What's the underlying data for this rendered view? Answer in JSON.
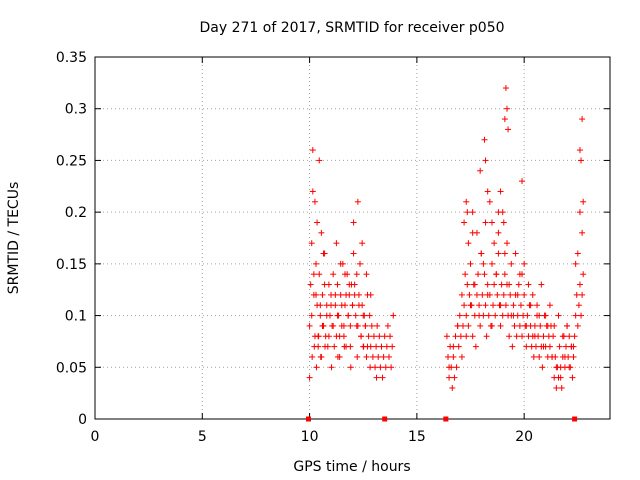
{
  "chart_data": {
    "type": "scatter",
    "title": "Day 271 of 2017, SRMTID for receiver p050",
    "xlabel": "GPS time / hours",
    "ylabel": "SRMTID / TECUs",
    "xlim": [
      0,
      24
    ],
    "ylim": [
      0,
      0.35
    ],
    "xticks": [
      "0",
      "5",
      "10",
      "15",
      "20"
    ],
    "yticks": [
      "0",
      "0.05",
      "0.1",
      "0.15",
      "0.2",
      "0.25",
      "0.3",
      "0.35"
    ],
    "grid": true,
    "marker": "+",
    "color": "#ff0000",
    "series": [
      {
        "name": "SRMTID",
        "x": [
          10.0,
          10.05,
          10.1,
          10.15,
          10.2,
          10.25,
          10.3,
          10.35,
          10.4,
          10.45,
          10.5,
          10.55,
          10.6,
          10.65,
          10.7,
          10.75,
          10.8,
          10.85,
          10.9,
          10.95,
          11.0,
          11.05,
          11.1,
          11.15,
          11.2,
          11.25,
          11.3,
          11.35,
          11.4,
          11.45,
          11.5,
          11.55,
          11.6,
          11.65,
          11.7,
          11.75,
          11.8,
          11.85,
          11.9,
          11.95,
          12.0,
          12.05,
          12.1,
          12.15,
          12.2,
          12.25,
          12.3,
          12.35,
          12.4,
          12.45,
          12.5,
          12.55,
          12.6,
          12.65,
          12.7,
          12.75,
          12.8,
          12.85,
          12.9,
          12.95,
          13.0,
          13.05,
          13.1,
          13.15,
          13.2,
          13.25,
          13.3,
          13.35,
          13.4,
          13.45,
          13.5,
          13.55,
          13.6,
          13.65,
          13.7,
          13.75,
          13.8,
          13.85,
          13.9,
          10.1,
          10.2,
          10.3,
          10.4,
          10.5,
          10.6,
          10.7,
          10.8,
          10.9,
          11.0,
          11.1,
          11.2,
          11.3,
          11.4,
          11.5,
          11.6,
          11.7,
          11.8,
          11.9,
          12.0,
          12.1,
          12.2,
          12.3,
          12.4,
          12.5,
          12.6,
          12.7,
          10.15,
          10.25,
          10.35,
          10.45,
          10.55,
          10.65,
          11.25,
          11.45,
          11.65,
          11.85,
          12.05,
          12.25,
          12.45,
          12.65,
          12.85,
          10.0,
          10.12,
          10.22,
          10.32,
          10.42,
          10.52,
          10.62,
          10.72,
          11.02,
          11.32,
          11.62,
          11.92,
          12.22,
          12.52,
          12.82,
          13.12,
          16.4,
          16.45,
          16.5,
          16.55,
          16.6,
          16.65,
          16.7,
          16.75,
          16.8,
          16.85,
          16.9,
          16.95,
          17.0,
          17.05,
          17.1,
          17.15,
          17.2,
          17.25,
          17.3,
          17.35,
          17.4,
          17.45,
          17.5,
          17.55,
          17.6,
          17.65,
          17.7,
          17.75,
          17.8,
          17.85,
          17.9,
          17.95,
          18.0,
          18.05,
          18.1,
          18.15,
          18.2,
          18.25,
          18.3,
          18.35,
          18.4,
          18.45,
          18.5,
          18.55,
          18.6,
          18.65,
          18.7,
          18.75,
          18.8,
          18.85,
          18.9,
          18.95,
          19.0,
          19.05,
          19.1,
          19.15,
          19.2,
          19.25,
          19.3,
          19.35,
          19.4,
          19.45,
          19.5,
          19.55,
          19.6,
          19.65,
          19.7,
          19.75,
          19.8,
          19.85,
          19.9,
          19.95,
          20.0,
          20.05,
          20.1,
          20.15,
          20.2,
          20.25,
          20.3,
          20.35,
          20.4,
          20.45,
          20.5,
          20.55,
          20.6,
          20.65,
          20.7,
          20.75,
          20.8,
          20.85,
          20.9,
          20.95,
          21.0,
          21.05,
          21.1,
          21.15,
          21.2,
          21.25,
          21.3,
          21.35,
          21.4,
          21.45,
          21.5,
          21.55,
          21.6,
          21.65,
          21.7,
          21.75,
          21.8,
          21.85,
          21.9,
          21.95,
          22.0,
          22.05,
          22.1,
          22.15,
          22.2,
          22.25,
          22.3,
          22.35,
          22.4,
          22.45,
          22.5,
          22.55,
          22.6,
          22.65,
          22.7,
          22.75,
          16.5,
          16.7,
          16.9,
          17.1,
          17.3,
          17.5,
          17.7,
          17.9,
          18.1,
          18.3,
          18.5,
          18.7,
          18.9,
          19.1,
          19.3,
          19.5,
          19.7,
          19.9,
          20.1,
          20.3,
          20.5,
          20.7,
          20.9,
          21.1,
          21.3,
          21.5,
          21.7,
          21.9,
          22.1,
          22.3,
          22.5,
          22.7,
          17.2,
          17.4,
          17.6,
          17.8,
          18.0,
          18.2,
          18.4,
          18.6,
          18.8,
          19.0,
          19.2,
          19.4,
          19.6,
          19.8,
          20.0,
          20.2,
          20.4,
          20.6,
          20.8,
          21.0,
          21.2,
          21.4,
          21.6,
          21.8,
          22.0,
          22.2,
          22.4,
          22.6,
          17.3,
          17.6,
          17.95,
          18.15,
          18.3,
          18.8,
          19.1,
          19.15,
          19.2,
          19.25,
          19.9,
          22.6,
          22.7,
          22.75,
          18.2,
          18.5,
          17.35,
          18.9,
          19.05,
          22.65
        ],
        "y": [
          0.09,
          0.13,
          0.17,
          0.22,
          0.12,
          0.08,
          0.15,
          0.11,
          0.07,
          0.14,
          0.1,
          0.06,
          0.12,
          0.09,
          0.16,
          0.08,
          0.11,
          0.07,
          0.13,
          0.1,
          0.12,
          0.09,
          0.14,
          0.07,
          0.11,
          0.08,
          0.13,
          0.1,
          0.06,
          0.12,
          0.09,
          0.15,
          0.08,
          0.11,
          0.07,
          0.14,
          0.1,
          0.12,
          0.09,
          0.13,
          0.11,
          0.16,
          0.12,
          0.1,
          0.14,
          0.09,
          0.12,
          0.15,
          0.08,
          0.11,
          0.07,
          0.1,
          0.09,
          0.06,
          0.12,
          0.08,
          0.1,
          0.07,
          0.09,
          0.06,
          0.08,
          0.05,
          0.07,
          0.09,
          0.06,
          0.08,
          0.05,
          0.07,
          0.04,
          0.06,
          0.08,
          0.05,
          0.07,
          0.09,
          0.06,
          0.08,
          0.05,
          0.07,
          0.1,
          0.1,
          0.14,
          0.12,
          0.08,
          0.11,
          0.09,
          0.13,
          0.1,
          0.08,
          0.11,
          0.09,
          0.12,
          0.1,
          0.08,
          0.11,
          0.09,
          0.12,
          0.1,
          0.07,
          0.11,
          0.13,
          0.09,
          0.11,
          0.08,
          0.1,
          0.09,
          0.07,
          0.26,
          0.21,
          0.19,
          0.25,
          0.18,
          0.16,
          0.17,
          0.15,
          0.14,
          0.13,
          0.19,
          0.21,
          0.17,
          0.14,
          0.12,
          0.04,
          0.06,
          0.07,
          0.05,
          0.08,
          0.06,
          0.09,
          0.07,
          0.05,
          0.06,
          0.07,
          0.05,
          0.06,
          0.07,
          0.05,
          0.04,
          0.08,
          0.06,
          0.04,
          0.07,
          0.05,
          0.03,
          0.06,
          0.04,
          0.08,
          0.05,
          0.09,
          0.07,
          0.1,
          0.08,
          0.12,
          0.09,
          0.11,
          0.14,
          0.1,
          0.13,
          0.09,
          0.12,
          0.15,
          0.11,
          0.08,
          0.13,
          0.1,
          0.07,
          0.12,
          0.14,
          0.11,
          0.09,
          0.16,
          0.12,
          0.1,
          0.14,
          0.11,
          0.08,
          0.13,
          0.1,
          0.12,
          0.09,
          0.15,
          0.11,
          0.13,
          0.1,
          0.14,
          0.12,
          0.16,
          0.11,
          0.09,
          0.13,
          0.1,
          0.12,
          0.14,
          0.11,
          0.13,
          0.1,
          0.08,
          0.12,
          0.1,
          0.07,
          0.11,
          0.09,
          0.12,
          0.08,
          0.1,
          0.13,
          0.09,
          0.11,
          0.08,
          0.1,
          0.12,
          0.09,
          0.07,
          0.1,
          0.08,
          0.11,
          0.09,
          0.07,
          0.08,
          0.06,
          0.09,
          0.07,
          0.1,
          0.08,
          0.06,
          0.09,
          0.07,
          0.05,
          0.08,
          0.1,
          0.07,
          0.09,
          0.06,
          0.08,
          0.07,
          0.09,
          0.06,
          0.08,
          0.04,
          0.06,
          0.03,
          0.05,
          0.04,
          0.07,
          0.05,
          0.03,
          0.06,
          0.08,
          0.05,
          0.07,
          0.09,
          0.06,
          0.08,
          0.05,
          0.07,
          0.04,
          0.06,
          0.08,
          0.1,
          0.12,
          0.09,
          0.11,
          0.13,
          0.1,
          0.12,
          0.14,
          0.05,
          0.07,
          0.09,
          0.06,
          0.08,
          0.11,
          0.13,
          0.1,
          0.15,
          0.12,
          0.09,
          0.14,
          0.11,
          0.16,
          0.13,
          0.1,
          0.12,
          0.14,
          0.09,
          0.11,
          0.08,
          0.1,
          0.07,
          0.09,
          0.06,
          0.05,
          0.04,
          0.06,
          0.05,
          0.07,
          0.16,
          0.18,
          0.19,
          0.17,
          0.2,
          0.18,
          0.16,
          0.19,
          0.21,
          0.17,
          0.18,
          0.2,
          0.17,
          0.15,
          0.16,
          0.14,
          0.15,
          0.13,
          0.12,
          0.11,
          0.13,
          0.1,
          0.11,
          0.09,
          0.1,
          0.08,
          0.09,
          0.07,
          0.15,
          0.2,
          0.21,
          0.18,
          0.24,
          0.27,
          0.22,
          0.2,
          0.29,
          0.32,
          0.3,
          0.28,
          0.23,
          0.26,
          0.29,
          0.21,
          0.25,
          0.19,
          0.2,
          0.22,
          0.19,
          0.25
        ]
      }
    ],
    "baseline_markers_x": [
      9.95,
      13.5,
      16.35,
      22.35
    ]
  }
}
